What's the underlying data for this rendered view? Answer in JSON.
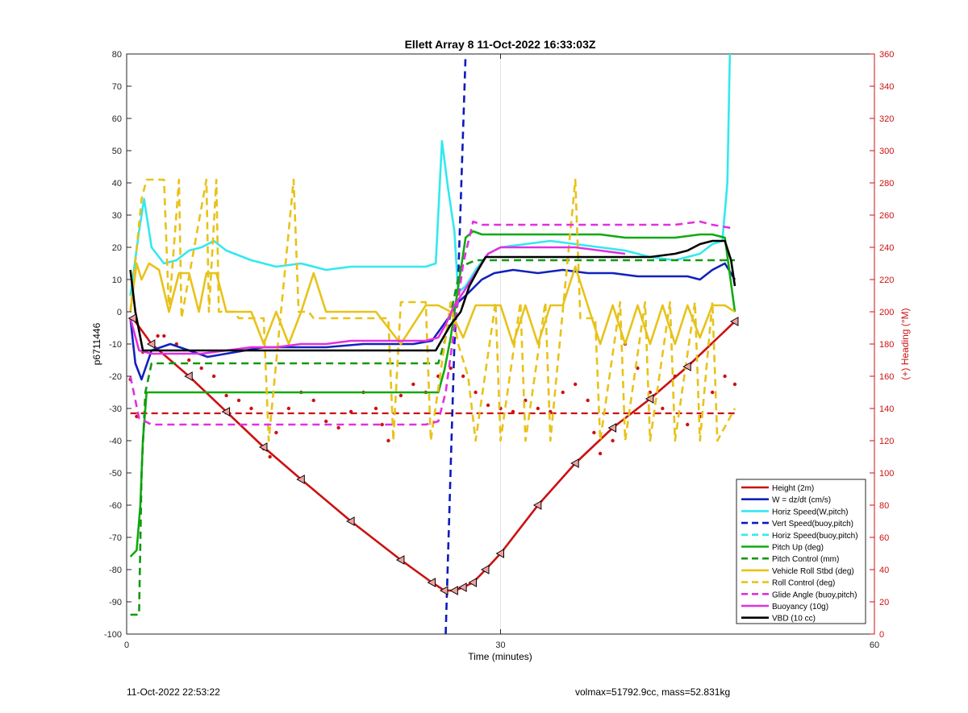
{
  "chart_data": {
    "type": "line",
    "title": "Ellett Array 8 11-Oct-2022 16:33:03Z",
    "xlabel": "Time (minutes)",
    "ylabel": "p6711446",
    "y2label": "(+) Heading (°M)",
    "xlim": [
      0,
      60
    ],
    "ylim": [
      -100,
      80
    ],
    "y2lim": [
      0,
      360
    ],
    "xticks": [
      "0",
      "30",
      "60"
    ],
    "yticks": [
      "-100",
      "-90",
      "-80",
      "-70",
      "-60",
      "-50",
      "-40",
      "-30",
      "-20",
      "-10",
      "0",
      "10",
      "20",
      "30",
      "40",
      "50",
      "60",
      "70",
      "80"
    ],
    "y2ticks": [
      "0",
      "20",
      "40",
      "60",
      "80",
      "100",
      "120",
      "140",
      "160",
      "180",
      "200",
      "220",
      "240",
      "260",
      "280",
      "300",
      "320",
      "340",
      "360"
    ],
    "grid": "vertical",
    "legend_position": "bottom-right",
    "series": [
      {
        "name": "Height (2m)",
        "color": "#cc1111",
        "style": "solid",
        "x": [
          0.5,
          2,
          5,
          8,
          11,
          14,
          18,
          22,
          24.5,
          25.5,
          26.3,
          27,
          27.8,
          28.8,
          30,
          33,
          36,
          39,
          42,
          45,
          48.8
        ],
        "y": [
          -2,
          -10,
          -20,
          -31,
          -42,
          -52,
          -65,
          -77,
          -84,
          -86.5,
          -86.5,
          -85.5,
          -84,
          -80,
          -75,
          -60,
          -47,
          -36,
          -27,
          -17,
          -3
        ]
      },
      {
        "name": "W = dz/dt (cm/s)",
        "color": "#1122bb",
        "style": "solid",
        "x": [
          0.3,
          0.7,
          1.2,
          2,
          3.5,
          5,
          6.5,
          8,
          9.5,
          11,
          13,
          16,
          19,
          21,
          23,
          24.5,
          25.8,
          26.6,
          27.2,
          28.5,
          29.5,
          31,
          33,
          35,
          37,
          39,
          41,
          43,
          45,
          46,
          47,
          48,
          48.8
        ],
        "y": [
          -2,
          -16,
          -21,
          -12,
          -10,
          -12,
          -14,
          -13,
          -12,
          -11,
          -11,
          -11,
          -10,
          -10,
          -10,
          -9,
          -2,
          3,
          5,
          10,
          12,
          13,
          12,
          13,
          12,
          12,
          11,
          11,
          11,
          10,
          13,
          15,
          10
        ]
      },
      {
        "name": "Horiz Speed(W,pitch)",
        "color": "#33e8f0",
        "style": "solid",
        "x": [
          0.3,
          1,
          1.4,
          2,
          3,
          4,
          5,
          6,
          7,
          8,
          10,
          12,
          14,
          16,
          18,
          20,
          22,
          24,
          24.8,
          25.3,
          25.8,
          26.3,
          26.6,
          27.2,
          28,
          29,
          30,
          32,
          34,
          36,
          38,
          40,
          42,
          44,
          45,
          46,
          47,
          47.8,
          48.2,
          48.4
        ],
        "y": [
          5,
          25,
          35,
          20,
          15,
          16,
          19,
          20,
          22,
          19,
          16,
          14,
          15,
          13,
          14,
          14,
          14,
          14,
          15,
          53,
          38,
          25,
          6,
          8,
          13,
          18,
          20,
          21,
          22,
          21,
          20,
          19,
          17,
          16,
          17,
          18,
          21,
          22,
          40,
          80
        ]
      },
      {
        "name": "Vert Speed(buoy,pitch)",
        "color": "#0b1bbb",
        "style": "dashed",
        "x": [
          25.6,
          26.3,
          26.6,
          27.2
        ],
        "y": [
          -100,
          -10,
          10,
          80
        ]
      },
      {
        "name": "Horiz Speed(buoy,pitch)",
        "color": "#33e8f0",
        "style": "dashed",
        "x": [],
        "y": []
      },
      {
        "name": "Pitch Up (deg)",
        "color": "#11aa11",
        "style": "solid",
        "x": [
          0.3,
          0.8,
          1.1,
          1.3,
          1.6,
          2,
          4,
          6,
          8,
          10,
          12,
          14,
          16,
          18,
          20,
          22,
          24,
          25,
          25.5,
          26,
          26.5,
          27.2,
          27.8,
          28.5,
          30,
          32,
          34,
          36,
          38,
          40,
          42,
          44,
          46,
          47,
          48,
          48.8
        ],
        "y": [
          -76,
          -74,
          -60,
          -40,
          -25,
          -25,
          -25,
          -25,
          -25,
          -25,
          -25,
          -25,
          -25,
          -25,
          -25,
          -25,
          -25,
          -25,
          -18,
          -8,
          5,
          23,
          25,
          24,
          24,
          24,
          24,
          24,
          24,
          23,
          23,
          23,
          24,
          24,
          23,
          0
        ]
      },
      {
        "name": "Pitch Control (mm)",
        "color": "#119911",
        "style": "dashed",
        "x": [
          0.3,
          1.0,
          1.2,
          1.5,
          2,
          10,
          20,
          25,
          25.6,
          26.8,
          28,
          30,
          40,
          48.8
        ],
        "y": [
          -94,
          -94,
          -50,
          -25,
          -16,
          -16,
          -16,
          -16,
          -8,
          14,
          16,
          16,
          16,
          16
        ]
      },
      {
        "name": "Vehicle Roll Stbd (deg)",
        "color": "#e8c21a",
        "style": "solid",
        "x": [
          0.3,
          0.8,
          1.2,
          1.8,
          2.6,
          3.4,
          4.2,
          5,
          5.8,
          6.4,
          7.2,
          8,
          9,
          10,
          11,
          12,
          13,
          14,
          15,
          16,
          18,
          20,
          22,
          24,
          25,
          26,
          27,
          28,
          29,
          30,
          31,
          32,
          33,
          34,
          35,
          36,
          37,
          38,
          39,
          40,
          41,
          42,
          43,
          44,
          45,
          46,
          47,
          48,
          48.8
        ],
        "y": [
          0,
          15,
          10,
          15,
          13,
          0,
          12,
          12,
          0,
          12,
          12,
          0,
          0,
          0,
          -10,
          0,
          -10,
          0,
          12,
          0,
          0,
          0,
          -10,
          2,
          2,
          0,
          -8,
          2,
          2,
          2,
          -10,
          2,
          -10,
          2,
          2,
          14,
          2,
          -10,
          2,
          -10,
          2,
          -10,
          2,
          -10,
          2,
          -8,
          2,
          2,
          0
        ]
      },
      {
        "name": "Roll Control (deg)",
        "color": "#e8c21a",
        "style": "dashed",
        "x": [
          0.3,
          1.2,
          1.6,
          3,
          3.4,
          4.2,
          4.4,
          6.4,
          6.6,
          7.2,
          7.4,
          8.6,
          9,
          11,
          11.4,
          13.4,
          13.8,
          14.6,
          15,
          21,
          21.4,
          22,
          22.6,
          24,
          24.4,
          26,
          26.6,
          27.4,
          28,
          29.6,
          30,
          31.6,
          32,
          33.6,
          34,
          36,
          36.4,
          37.6,
          38,
          39.6,
          40,
          41.6,
          42,
          43.6,
          44,
          45.6,
          46,
          47,
          47.4,
          48.8
        ],
        "y": [
          0,
          35,
          41,
          41,
          0,
          41,
          -2,
          41,
          0,
          41,
          0,
          0,
          -2,
          -2,
          -40,
          41,
          0,
          0,
          -2,
          -2,
          -40,
          3,
          3,
          3,
          -40,
          3,
          -10,
          -20,
          -40,
          3,
          -40,
          3,
          -40,
          3,
          -40,
          41,
          -2,
          -2,
          -40,
          3,
          -40,
          3,
          -40,
          3,
          -40,
          3,
          -40,
          3,
          -40,
          -30
        ]
      },
      {
        "name": "Glide Angle (buoy,pitch)",
        "color": "#e030e0",
        "style": "dashed",
        "x": [
          0.3,
          1,
          2,
          4,
          6,
          8,
          10,
          12,
          14,
          16,
          18,
          20,
          22,
          24,
          25,
          25.6,
          26.3,
          27,
          27.8,
          28.5,
          30,
          32,
          34,
          36,
          38,
          40,
          42,
          44,
          46,
          47,
          48.5
        ],
        "y": [
          -20,
          -33,
          -35,
          -35,
          -35,
          -35,
          -35,
          -35,
          -35,
          -35,
          -35,
          -35,
          -35,
          -35,
          -34,
          -25,
          -5,
          15,
          28,
          27,
          27,
          27,
          27,
          27,
          27,
          27,
          27,
          27,
          28,
          27,
          26
        ]
      },
      {
        "name": "Buoyancy (10g)",
        "color": "#e030e0",
        "style": "solid",
        "x": [
          0.3,
          1,
          2,
          4,
          6,
          8,
          10,
          12,
          14,
          16,
          18,
          20,
          22,
          24,
          25,
          25.6,
          26.3,
          27,
          28,
          29,
          30,
          32,
          34,
          36,
          38,
          40
        ],
        "y": [
          -2,
          -12,
          -13,
          -13,
          -13,
          -12,
          -11,
          -11,
          -10,
          -10,
          -9,
          -9,
          -9,
          -9,
          -8,
          -4,
          2,
          6,
          12,
          18,
          20,
          20,
          20,
          20,
          19,
          18
        ]
      },
      {
        "name": "VBD (10 cc)",
        "color": "#000000",
        "style": "solid",
        "x": [
          0.3,
          0.7,
          1.1,
          1.3,
          2,
          6,
          10,
          15,
          20,
          24,
          24.8,
          25.4,
          26,
          26.8,
          27.5,
          28.2,
          28.8,
          30,
          34,
          38,
          42,
          44,
          45,
          46,
          47,
          48,
          48.5,
          48.8
        ],
        "y": [
          13,
          0,
          -8,
          -12,
          -12,
          -12,
          -12,
          -12,
          -12,
          -12,
          -12,
          -8,
          -4,
          0,
          8,
          13,
          17,
          17,
          17,
          17,
          17,
          18,
          19,
          21,
          22,
          22,
          16,
          8
        ]
      }
    ],
    "heading_series": {
      "color": "#cc1111",
      "mean": 137,
      "x": [
        0.3,
        0.8,
        1.3,
        2,
        2.5,
        3,
        4,
        5,
        6,
        7,
        8,
        9,
        10,
        11,
        11.5,
        12,
        13,
        14,
        15,
        16,
        17,
        18,
        19,
        20,
        20.5,
        21,
        22,
        23,
        24,
        25,
        26,
        27,
        28,
        29,
        30,
        31,
        32,
        33,
        34,
        35,
        36,
        37,
        37.5,
        38,
        39,
        40,
        41,
        42,
        43,
        44,
        45,
        46,
        47,
        48,
        48.8
      ],
      "y": [
        158,
        135,
        175,
        180,
        185,
        185,
        180,
        170,
        165,
        160,
        148,
        145,
        140,
        115,
        110,
        125,
        140,
        150,
        145,
        132,
        128,
        138,
        150,
        140,
        130,
        120,
        148,
        155,
        150,
        160,
        165,
        160,
        150,
        142,
        140,
        138,
        145,
        140,
        138,
        150,
        155,
        145,
        125,
        112,
        120,
        180,
        165,
        150,
        140,
        160,
        130,
        135,
        150,
        160,
        155
      ]
    }
  },
  "footer": {
    "timestamp": "11-Oct-2022 22:53:22",
    "summary": "volmax=51792.9cc, mass=52.831kg"
  }
}
